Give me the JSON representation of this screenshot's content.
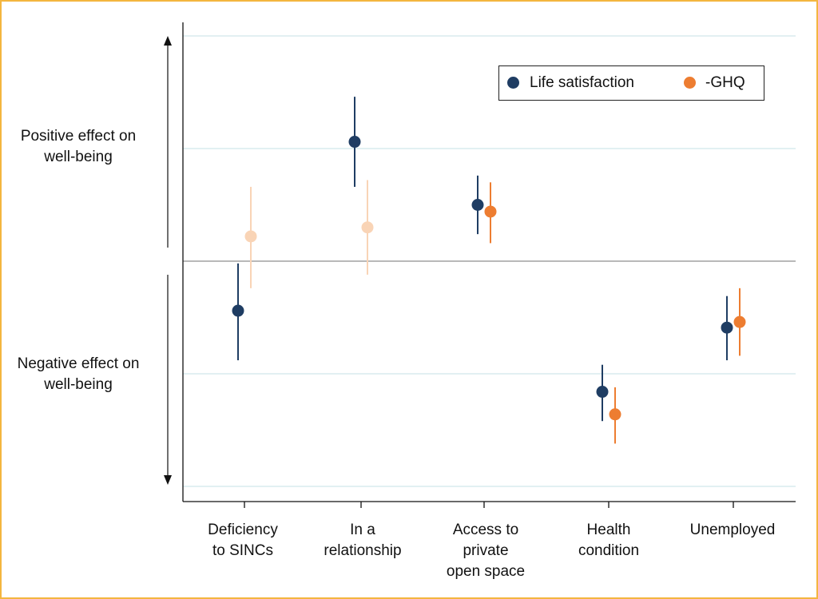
{
  "chart_data": {
    "type": "scatter",
    "categories": [
      "Deficiency to SINCs",
      "In a relationship",
      "Access to private open space",
      "Health condition",
      "Unemployed"
    ],
    "category_labels": [
      [
        "Deficiency",
        "to SINCs"
      ],
      [
        "In a",
        "relationship"
      ],
      [
        "Access to",
        "private",
        "open space"
      ],
      [
        "Health",
        "condition"
      ],
      [
        "Unemployed"
      ]
    ],
    "y_side_labels": {
      "positive": [
        "Positive effect on",
        "well-being"
      ],
      "negative": [
        "Negative effect on",
        "well-being"
      ]
    },
    "ylim": [
      -1.0,
      1.0
    ],
    "gridlines": [
      -1.0,
      -0.5,
      0.5,
      1.0
    ],
    "zero_line": 0,
    "grid": true,
    "legend_position": "top-right",
    "series": [
      {
        "name": "Life satisfaction",
        "color": "#1f3d63",
        "estimates": [
          -0.22,
          0.53,
          0.25,
          -0.58,
          -0.295
        ],
        "ci_low": [
          -0.44,
          0.33,
          0.12,
          -0.71,
          -0.44
        ],
        "ci_high": [
          -0.01,
          0.73,
          0.38,
          -0.46,
          -0.155
        ],
        "faded": [
          false,
          false,
          false,
          false,
          false
        ]
      },
      {
        "name": "-GHQ",
        "color": "#ed7d31",
        "faded_color": "#f9d4b6",
        "estimates": [
          0.11,
          0.15,
          0.22,
          -0.68,
          -0.27
        ],
        "ci_low": [
          -0.12,
          -0.06,
          0.08,
          -0.81,
          -0.42
        ],
        "ci_high": [
          0.33,
          0.36,
          0.35,
          -0.56,
          -0.12
        ],
        "faded": [
          true,
          true,
          false,
          false,
          false
        ]
      }
    ]
  }
}
